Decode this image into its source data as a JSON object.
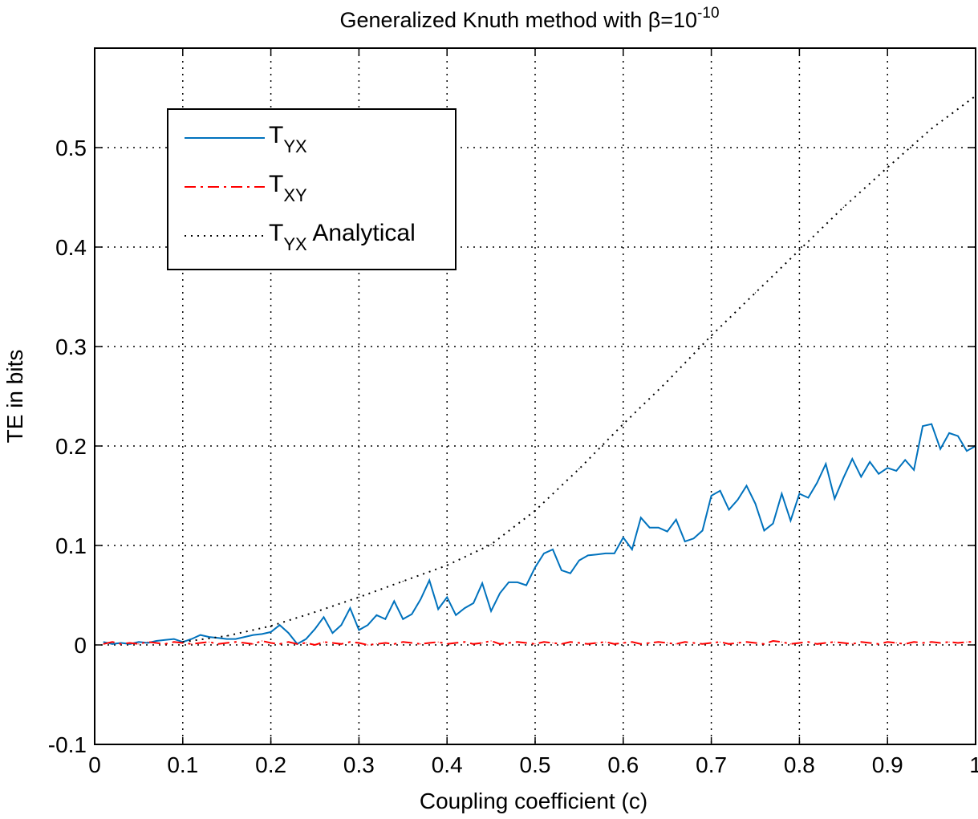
{
  "chart_data": {
    "type": "line",
    "title": "Generalized Knuth method with β=10",
    "title_superscript": "-10",
    "xlabel": "Coupling coefficient (c)",
    "ylabel": "TE in bits",
    "xlim": [
      0,
      1
    ],
    "ylim": [
      -0.1,
      0.6
    ],
    "x_ticks": [
      0,
      0.1,
      0.2,
      0.3,
      0.4,
      0.5,
      0.6,
      0.7,
      0.8,
      0.9,
      1
    ],
    "x_tick_labels": [
      "0",
      "0.1",
      "0.2",
      "0.3",
      "0.4",
      "0.5",
      "0.6",
      "0.7",
      "0.8",
      "0.9",
      "1"
    ],
    "y_ticks": [
      -0.1,
      0,
      0.1,
      0.2,
      0.3,
      0.4,
      0.5
    ],
    "y_tick_labels": [
      "-0.1",
      "0",
      "0.1",
      "0.2",
      "0.3",
      "0.4",
      "0.5"
    ],
    "grid": true,
    "legend_position": "top-left",
    "series": [
      {
        "name": "T",
        "subscript": "YX",
        "suffix": "",
        "color": "#0072BD",
        "style": "solid",
        "x": [
          0.01,
          0.02,
          0.03,
          0.04,
          0.05,
          0.06,
          0.07,
          0.08,
          0.09,
          0.1,
          0.11,
          0.12,
          0.13,
          0.14,
          0.15,
          0.16,
          0.17,
          0.18,
          0.19,
          0.2,
          0.21,
          0.22,
          0.23,
          0.24,
          0.25,
          0.26,
          0.27,
          0.28,
          0.29,
          0.3,
          0.31,
          0.32,
          0.33,
          0.34,
          0.35,
          0.36,
          0.37,
          0.38,
          0.39,
          0.4,
          0.41,
          0.42,
          0.43,
          0.44,
          0.45,
          0.46,
          0.47,
          0.48,
          0.49,
          0.5,
          0.51,
          0.52,
          0.53,
          0.54,
          0.55,
          0.56,
          0.57,
          0.58,
          0.59,
          0.6,
          0.61,
          0.62,
          0.63,
          0.64,
          0.65,
          0.66,
          0.67,
          0.68,
          0.69,
          0.7,
          0.71,
          0.72,
          0.73,
          0.74,
          0.75,
          0.76,
          0.77,
          0.78,
          0.79,
          0.8,
          0.81,
          0.82,
          0.83,
          0.84,
          0.85,
          0.86,
          0.87,
          0.88,
          0.89,
          0.9,
          0.91,
          0.92,
          0.93,
          0.94,
          0.95,
          0.96,
          0.97,
          0.98,
          0.99,
          1.0
        ],
        "y": [
          0.003,
          0.001,
          0.002,
          0.001,
          0.003,
          0.002,
          0.004,
          0.005,
          0.006,
          0.003,
          0.006,
          0.01,
          0.008,
          0.007,
          0.006,
          0.006,
          0.008,
          0.01,
          0.011,
          0.013,
          0.02,
          0.012,
          0.001,
          0.006,
          0.016,
          0.028,
          0.012,
          0.02,
          0.037,
          0.015,
          0.02,
          0.03,
          0.026,
          0.044,
          0.026,
          0.031,
          0.046,
          0.065,
          0.036,
          0.048,
          0.03,
          0.037,
          0.042,
          0.062,
          0.034,
          0.052,
          0.063,
          0.063,
          0.06,
          0.078,
          0.092,
          0.096,
          0.075,
          0.072,
          0.085,
          0.09,
          0.091,
          0.092,
          0.092,
          0.108,
          0.096,
          0.128,
          0.118,
          0.118,
          0.114,
          0.126,
          0.104,
          0.107,
          0.115,
          0.15,
          0.155,
          0.136,
          0.146,
          0.16,
          0.142,
          0.115,
          0.122,
          0.152,
          0.125,
          0.152,
          0.148,
          0.163,
          0.182,
          0.147,
          0.168,
          0.187,
          0.169,
          0.184,
          0.172,
          0.178,
          0.175,
          0.186,
          0.176,
          0.22,
          0.222,
          0.197,
          0.213,
          0.21,
          0.195,
          0.2
        ]
      },
      {
        "name": "T",
        "subscript": "XY",
        "suffix": "",
        "color": "#FF0000",
        "style": "dashdot",
        "x": [
          0.01,
          0.02,
          0.03,
          0.04,
          0.05,
          0.06,
          0.07,
          0.08,
          0.09,
          0.1,
          0.11,
          0.12,
          0.13,
          0.14,
          0.15,
          0.16,
          0.17,
          0.18,
          0.19,
          0.2,
          0.21,
          0.22,
          0.23,
          0.24,
          0.25,
          0.26,
          0.27,
          0.28,
          0.29,
          0.3,
          0.31,
          0.32,
          0.33,
          0.34,
          0.35,
          0.36,
          0.37,
          0.38,
          0.39,
          0.4,
          0.41,
          0.42,
          0.43,
          0.44,
          0.45,
          0.46,
          0.47,
          0.48,
          0.49,
          0.5,
          0.51,
          0.52,
          0.53,
          0.54,
          0.55,
          0.56,
          0.57,
          0.58,
          0.59,
          0.6,
          0.61,
          0.62,
          0.63,
          0.64,
          0.65,
          0.66,
          0.67,
          0.68,
          0.69,
          0.7,
          0.71,
          0.72,
          0.73,
          0.74,
          0.75,
          0.76,
          0.77,
          0.78,
          0.79,
          0.8,
          0.81,
          0.82,
          0.83,
          0.84,
          0.85,
          0.86,
          0.87,
          0.88,
          0.89,
          0.9,
          0.91,
          0.92,
          0.93,
          0.94,
          0.95,
          0.96,
          0.97,
          0.98,
          0.99,
          1.0
        ],
        "y": [
          0.001,
          0.003,
          0.001,
          0.002,
          0.001,
          0.003,
          0.002,
          0.001,
          0.003,
          0.002,
          0.001,
          0.002,
          0.003,
          0.001,
          0.002,
          0.003,
          0.002,
          0.001,
          0.004,
          0.002,
          0.001,
          0.003,
          0.001,
          0.002,
          0.0,
          0.003,
          0.002,
          0.001,
          0.003,
          0.002,
          0.0,
          0.001,
          0.002,
          0.001,
          0.003,
          0.002,
          0.001,
          0.002,
          0.003,
          0.001,
          0.002,
          0.003,
          0.001,
          0.002,
          0.004,
          0.001,
          0.002,
          0.003,
          0.002,
          0.001,
          0.003,
          0.002,
          0.001,
          0.003,
          0.002,
          0.001,
          0.002,
          0.003,
          0.001,
          0.002,
          0.003,
          0.001,
          0.002,
          0.003,
          0.002,
          0.001,
          0.003,
          0.002,
          0.001,
          0.002,
          0.003,
          0.001,
          0.002,
          0.003,
          0.002,
          0.001,
          0.004,
          0.003,
          0.001,
          0.002,
          0.003,
          0.001,
          0.002,
          0.003,
          0.002,
          0.001,
          0.003,
          0.002,
          0.001,
          0.003,
          0.002,
          0.001,
          0.003,
          0.002,
          0.003,
          0.002,
          0.003,
          0.002,
          0.003,
          0.003
        ]
      },
      {
        "name": "T",
        "subscript": "YX",
        "suffix": " Analytical",
        "color": "#000000",
        "style": "dotted",
        "x": [
          0.1,
          0.15,
          0.2,
          0.25,
          0.3,
          0.35,
          0.4,
          0.45,
          0.5,
          0.55,
          0.6,
          0.65,
          0.7,
          0.75,
          0.8,
          0.85,
          0.9,
          0.95,
          1.0
        ],
        "y": [
          0.003,
          0.009,
          0.019,
          0.033,
          0.048,
          0.064,
          0.08,
          0.101,
          0.135,
          0.177,
          0.222,
          0.265,
          0.311,
          0.354,
          0.397,
          0.44,
          0.48,
          0.519,
          0.552
        ]
      }
    ]
  }
}
